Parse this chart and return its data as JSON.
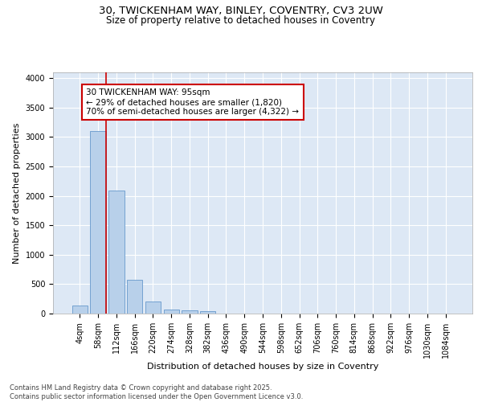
{
  "title_line1": "30, TWICKENHAM WAY, BINLEY, COVENTRY, CV3 2UW",
  "title_line2": "Size of property relative to detached houses in Coventry",
  "xlabel": "Distribution of detached houses by size in Coventry",
  "ylabel": "Number of detached properties",
  "bar_color": "#b8d0ea",
  "bar_edge_color": "#6699cc",
  "background_color": "#dde8f5",
  "grid_color": "#ffffff",
  "categories": [
    "4sqm",
    "58sqm",
    "112sqm",
    "166sqm",
    "220sqm",
    "274sqm",
    "328sqm",
    "382sqm",
    "436sqm",
    "490sqm",
    "544sqm",
    "598sqm",
    "652sqm",
    "706sqm",
    "760sqm",
    "814sqm",
    "868sqm",
    "922sqm",
    "976sqm",
    "1030sqm",
    "1084sqm"
  ],
  "values": [
    130,
    3100,
    2090,
    575,
    210,
    75,
    55,
    40,
    0,
    0,
    0,
    0,
    0,
    0,
    0,
    0,
    0,
    0,
    0,
    0,
    0
  ],
  "ylim": [
    0,
    4100
  ],
  "yticks": [
    0,
    500,
    1000,
    1500,
    2000,
    2500,
    3000,
    3500,
    4000
  ],
  "property_line_x": 1.45,
  "annotation_text": "30 TWICKENHAM WAY: 95sqm\n← 29% of detached houses are smaller (1,820)\n70% of semi-detached houses are larger (4,322) →",
  "annotation_box_color": "#ffffff",
  "annotation_border_color": "#cc0000",
  "footer_text": "Contains HM Land Registry data © Crown copyright and database right 2025.\nContains public sector information licensed under the Open Government Licence v3.0.",
  "title_fontsize": 9.5,
  "subtitle_fontsize": 8.5,
  "axis_label_fontsize": 8,
  "tick_fontsize": 7,
  "annotation_fontsize": 7.5,
  "footer_fontsize": 6
}
